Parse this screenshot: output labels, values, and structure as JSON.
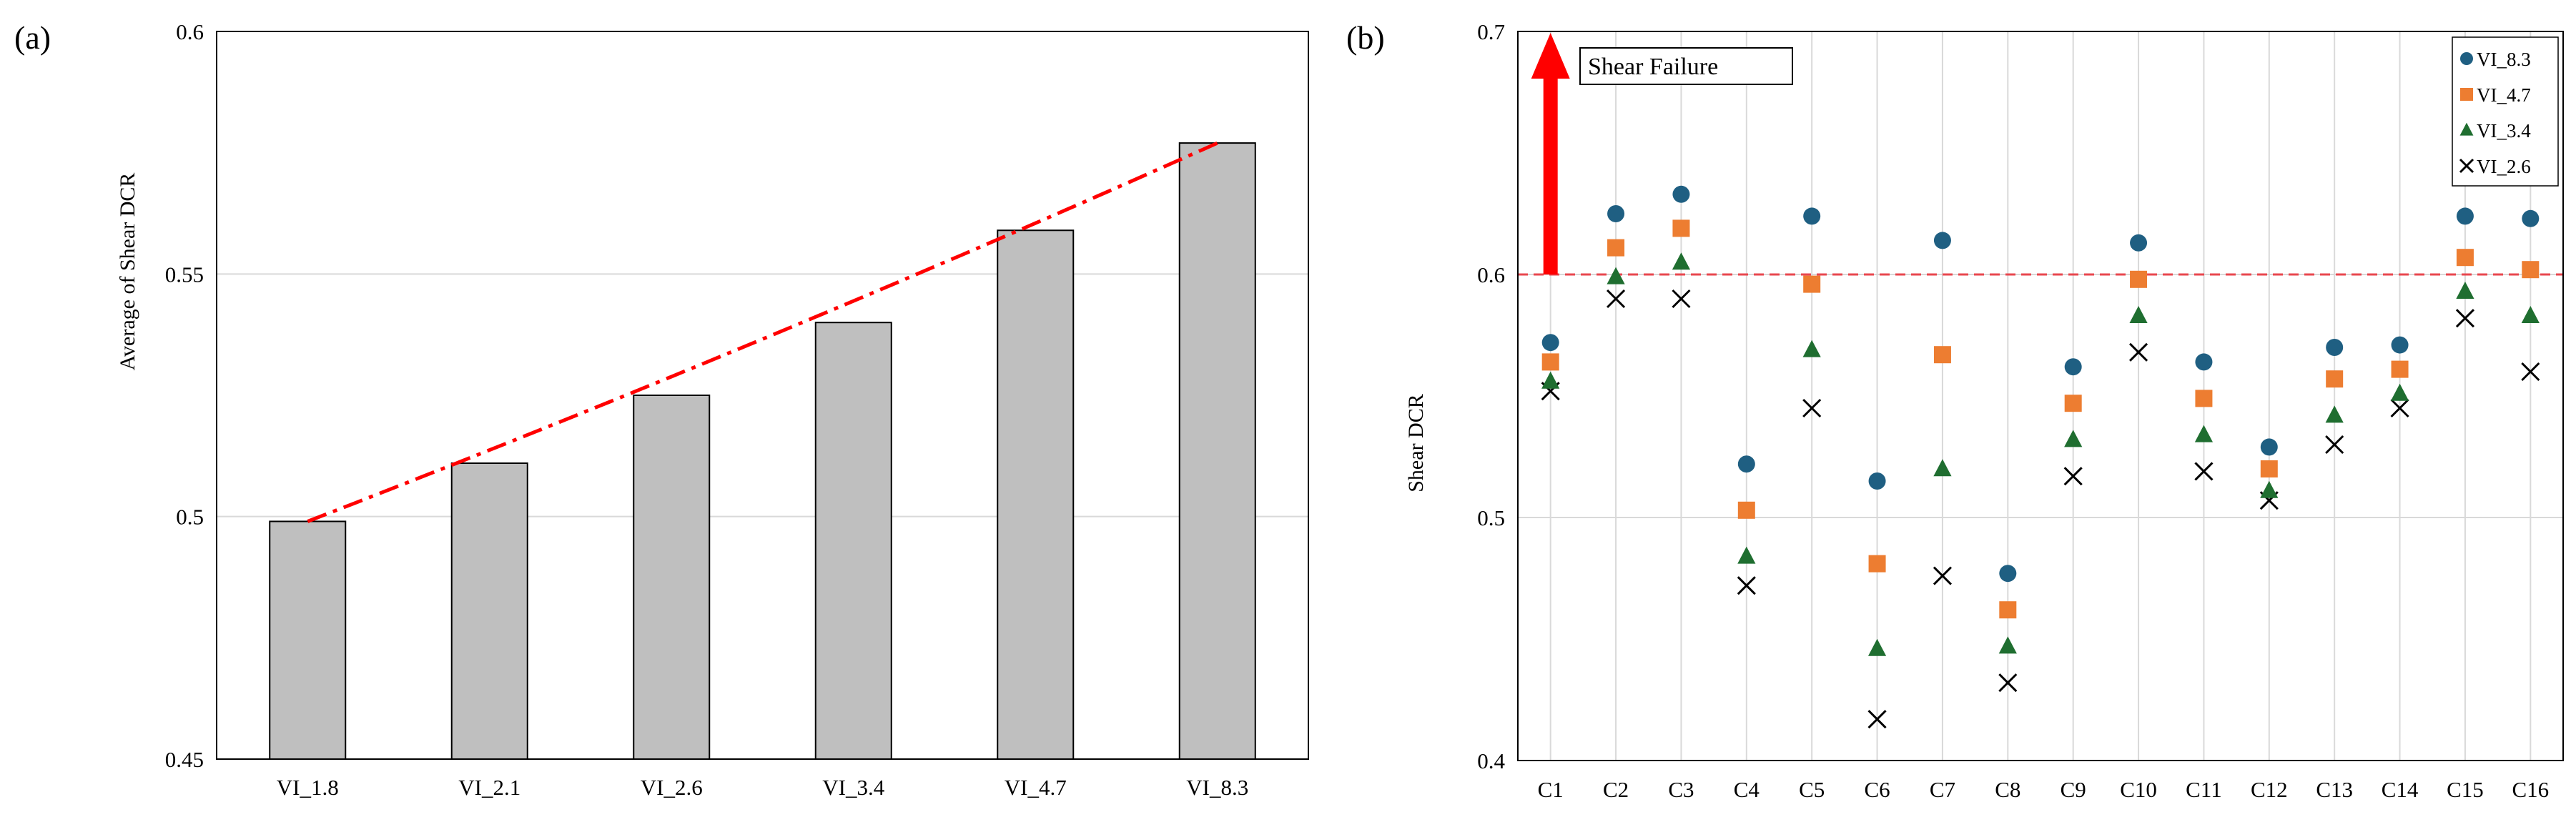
{
  "colors": {
    "bar_fill": "#bfbfbf",
    "trend_line": "#ff0000",
    "threshold_line": "#e8474f",
    "arrow": "#ff0000",
    "grid": "#d9d9d9",
    "series_vi_8_3": "#1f5f82",
    "series_vi_4_7": "#ed7d31",
    "series_vi_3_4": "#1f6e30",
    "series_vi_2_6": "#000000"
  },
  "chart_data": [
    {
      "panel_label": "(a)",
      "type": "bar",
      "title": "",
      "xlabel": "",
      "ylabel": "Average of Shear DCR",
      "categories": [
        "VI_1.8",
        "VI_2.1",
        "VI_2.6",
        "VI_3.4",
        "VI_4.7",
        "VI_8.3"
      ],
      "values": [
        0.499,
        0.511,
        0.525,
        0.54,
        0.559,
        0.577
      ],
      "ylim": [
        0.45,
        0.6
      ],
      "yticks": [
        0.45,
        0.5,
        0.55,
        0.6
      ],
      "ytick_labels": [
        "0.45",
        "0.5",
        "0.55",
        "0.6"
      ],
      "grid": true,
      "trendline": {
        "style": "dash-dot",
        "from": 0.499,
        "to": 0.577
      }
    },
    {
      "panel_label": "(b)",
      "type": "scatter",
      "title": "",
      "xlabel": "",
      "ylabel": "Shear DCR",
      "categories": [
        "C1",
        "C2",
        "C3",
        "C4",
        "C5",
        "C6",
        "C7",
        "C8",
        "C9",
        "C10",
        "C11",
        "C12",
        "C13",
        "C14",
        "C15",
        "C16"
      ],
      "ylim": [
        0.4,
        0.7
      ],
      "yticks": [
        0.4,
        0.5,
        0.6,
        0.7
      ],
      "ytick_labels": [
        "0.4",
        "0.5",
        "0.6",
        "0.7"
      ],
      "grid": true,
      "legend_position": "top-right",
      "threshold": {
        "value": 0.6,
        "style": "dashed"
      },
      "annotation": {
        "text": "Shear Failure",
        "arrow": "up"
      },
      "series": [
        {
          "name": "VI_8.3",
          "marker": "circle",
          "values": [
            0.572,
            0.625,
            0.633,
            0.522,
            0.624,
            0.515,
            0.614,
            0.477,
            0.562,
            0.613,
            0.564,
            0.529,
            0.57,
            0.571,
            0.624,
            0.623
          ]
        },
        {
          "name": "VI_4.7",
          "marker": "square",
          "values": [
            0.564,
            0.611,
            0.619,
            0.503,
            0.596,
            0.481,
            0.567,
            0.462,
            0.547,
            0.598,
            0.549,
            0.52,
            0.557,
            0.561,
            0.607,
            0.602
          ]
        },
        {
          "name": "VI_3.4",
          "marker": "triangle",
          "values": [
            0.556,
            0.599,
            0.605,
            0.484,
            0.569,
            0.446,
            0.52,
            0.447,
            0.532,
            0.583,
            0.534,
            0.511,
            0.542,
            0.551,
            0.593,
            0.583
          ]
        },
        {
          "name": "VI_2.6",
          "marker": "x",
          "values": [
            0.552,
            0.59,
            0.59,
            0.472,
            0.545,
            0.417,
            0.476,
            0.432,
            0.517,
            0.568,
            0.519,
            0.507,
            0.53,
            0.545,
            0.582,
            0.56
          ]
        }
      ]
    }
  ]
}
